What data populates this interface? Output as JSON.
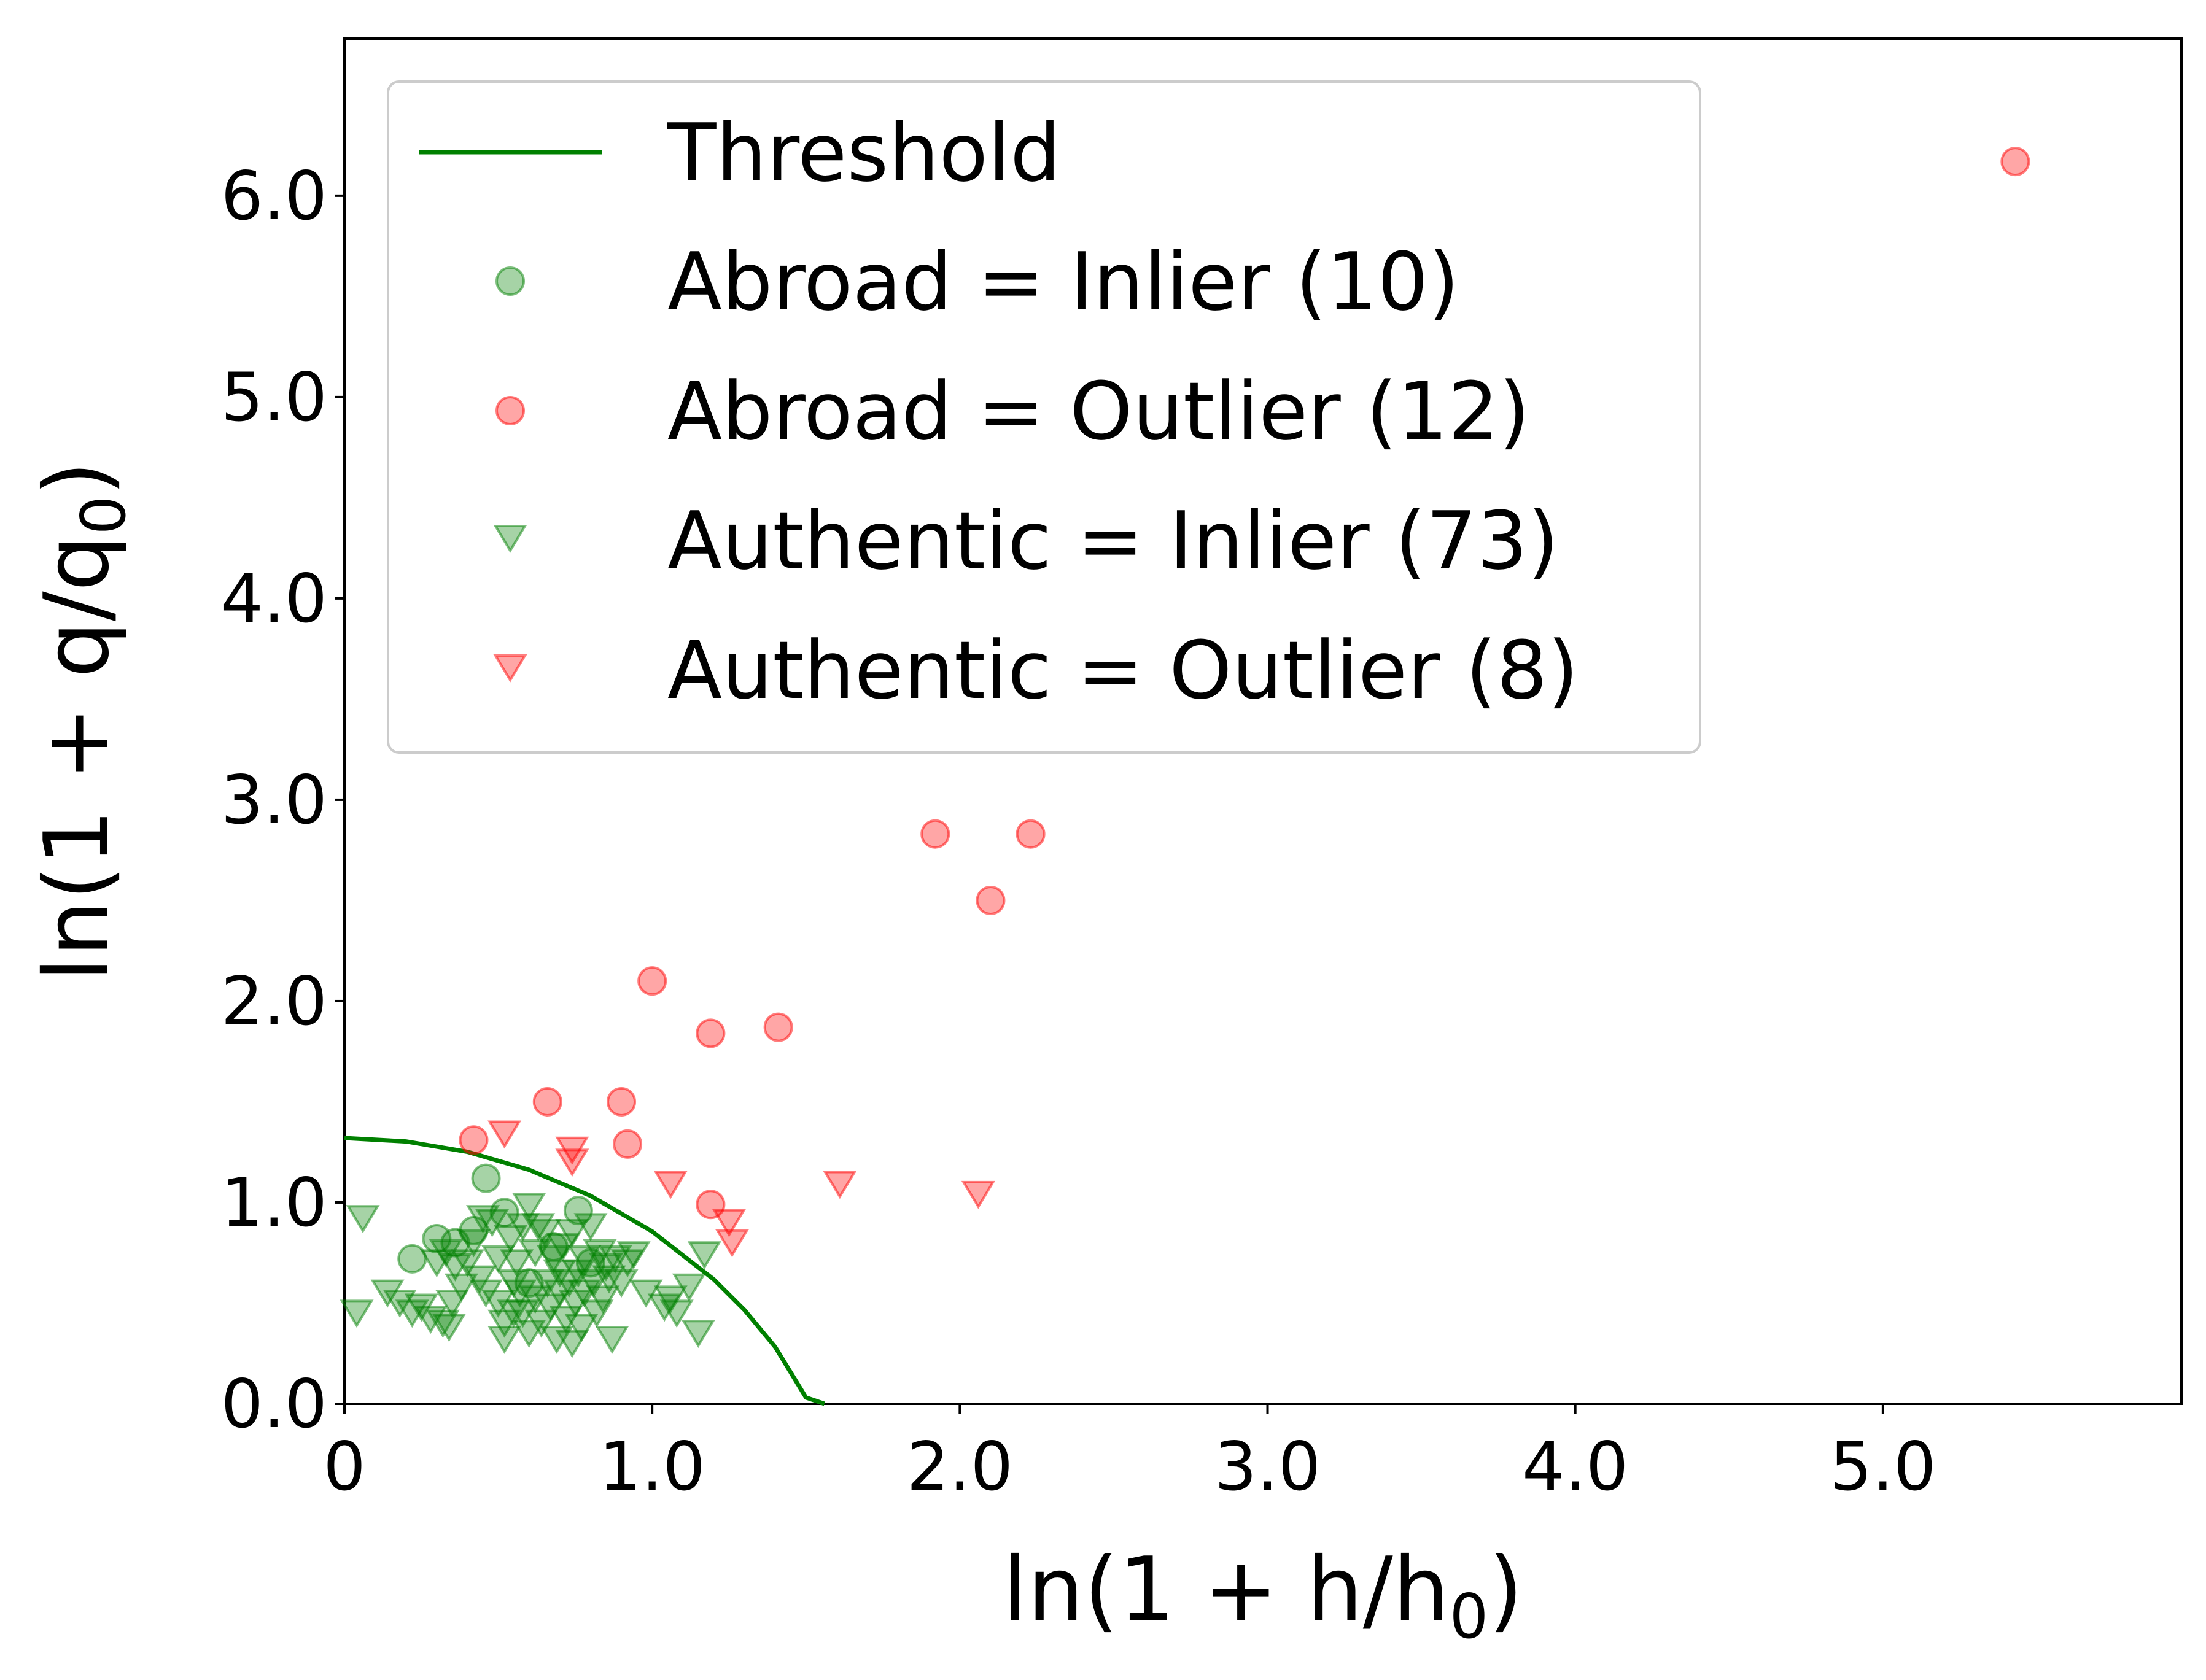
{
  "chart_data": {
    "type": "scatter",
    "xlabel": "ln(1 + h/h",
    "xlabel_sub": "0",
    "xlabel_end": ")",
    "ylabel": "ln(1 + q/q",
    "ylabel_sub": "0",
    "ylabel_end": ")",
    "xlim": [
      0,
      5.97
    ],
    "ylim": [
      0,
      6.78
    ],
    "x_ticks": [
      {
        "value": 0,
        "label": "0"
      },
      {
        "value": 1,
        "label": "1.0"
      },
      {
        "value": 2,
        "label": "2.0"
      },
      {
        "value": 3,
        "label": "3.0"
      },
      {
        "value": 4,
        "label": "4.0"
      },
      {
        "value": 5,
        "label": "5.0"
      }
    ],
    "y_ticks": [
      {
        "value": 0,
        "label": "0.0"
      },
      {
        "value": 1,
        "label": "1.0"
      },
      {
        "value": 2,
        "label": "2.0"
      },
      {
        "value": 3,
        "label": "3.0"
      },
      {
        "value": 4,
        "label": "4.0"
      },
      {
        "value": 5,
        "label": "5.0"
      },
      {
        "value": 6,
        "label": "6.0"
      }
    ],
    "legend_placement": "top-left",
    "grid": false,
    "threshold": {
      "name": "Threshold",
      "color": "#008000",
      "points": [
        [
          0,
          1.32
        ],
        [
          0.2,
          1.303
        ],
        [
          0.4,
          1.251
        ],
        [
          0.6,
          1.162
        ],
        [
          0.8,
          1.033
        ],
        [
          1.0,
          0.856
        ],
        [
          1.2,
          0.618
        ],
        [
          1.3,
          0.466
        ],
        [
          1.4,
          0.282
        ],
        [
          1.5,
          0.031
        ],
        [
          1.56,
          0
        ]
      ]
    },
    "series": [
      {
        "name": "Abroad = Inlier (10)",
        "marker": "circle",
        "color": "#008000",
        "points": [
          [
            0.22,
            0.72
          ],
          [
            0.3,
            0.82
          ],
          [
            0.36,
            0.8
          ],
          [
            0.42,
            0.86
          ],
          [
            0.46,
            1.12
          ],
          [
            0.52,
            0.95
          ],
          [
            0.6,
            0.6
          ],
          [
            0.68,
            0.78
          ],
          [
            0.76,
            0.96
          ],
          [
            0.8,
            0.7
          ]
        ]
      },
      {
        "name": "Abroad = Outlier (12)",
        "marker": "circle",
        "color": "#ff0000",
        "points": [
          [
            0.42,
            1.31
          ],
          [
            0.66,
            1.5
          ],
          [
            0.9,
            1.5
          ],
          [
            0.92,
            1.29
          ],
          [
            1.0,
            2.1
          ],
          [
            1.19,
            1.84
          ],
          [
            1.41,
            1.87
          ],
          [
            1.19,
            0.99
          ],
          [
            1.92,
            2.83
          ],
          [
            2.1,
            2.5
          ],
          [
            2.23,
            2.83
          ],
          [
            5.43,
            6.17
          ]
        ]
      },
      {
        "name": "Authentic = Inlier (73)",
        "marker": "triangle-down",
        "color": "#008000",
        "points": [
          [
            0.06,
            0.92
          ],
          [
            0.04,
            0.45
          ],
          [
            0.14,
            0.55
          ],
          [
            0.18,
            0.5
          ],
          [
            0.22,
            0.45
          ],
          [
            0.25,
            0.48
          ],
          [
            0.28,
            0.42
          ],
          [
            0.32,
            0.4
          ],
          [
            0.34,
            0.38
          ],
          [
            0.35,
            0.5
          ],
          [
            0.38,
            0.58
          ],
          [
            0.3,
            0.7
          ],
          [
            0.33,
            0.75
          ],
          [
            0.36,
            0.68
          ],
          [
            0.4,
            0.7
          ],
          [
            0.42,
            0.8
          ],
          [
            0.44,
            0.62
          ],
          [
            0.45,
            0.92
          ],
          [
            0.48,
            0.9
          ],
          [
            0.5,
            0.72
          ],
          [
            0.5,
            0.5
          ],
          [
            0.52,
            0.4
          ],
          [
            0.52,
            0.32
          ],
          [
            0.54,
            0.82
          ],
          [
            0.55,
            0.6
          ],
          [
            0.56,
            0.7
          ],
          [
            0.57,
            0.55
          ],
          [
            0.58,
            0.88
          ],
          [
            0.58,
            0.45
          ],
          [
            0.6,
            0.98
          ],
          [
            0.6,
            0.35
          ],
          [
            0.62,
            0.52
          ],
          [
            0.62,
            0.75
          ],
          [
            0.64,
            0.4
          ],
          [
            0.65,
            0.85
          ],
          [
            0.66,
            0.6
          ],
          [
            0.67,
            0.48
          ],
          [
            0.68,
            0.72
          ],
          [
            0.69,
            0.32
          ],
          [
            0.7,
            0.55
          ],
          [
            0.71,
            0.78
          ],
          [
            0.72,
            0.42
          ],
          [
            0.73,
            0.6
          ],
          [
            0.74,
            0.3
          ],
          [
            0.74,
            0.85
          ],
          [
            0.75,
            0.5
          ],
          [
            0.76,
            0.65
          ],
          [
            0.77,
            0.38
          ],
          [
            0.78,
            0.72
          ],
          [
            0.78,
            0.55
          ],
          [
            0.8,
            0.88
          ],
          [
            0.81,
            0.6
          ],
          [
            0.82,
            0.45
          ],
          [
            0.83,
            0.75
          ],
          [
            0.84,
            0.52
          ],
          [
            0.85,
            0.68
          ],
          [
            0.86,
            0.62
          ],
          [
            0.87,
            0.32
          ],
          [
            0.88,
            0.72
          ],
          [
            0.9,
            0.6
          ],
          [
            0.92,
            0.7
          ],
          [
            0.94,
            0.74
          ],
          [
            0.98,
            0.55
          ],
          [
            1.04,
            0.48
          ],
          [
            1.06,
            0.52
          ],
          [
            1.08,
            0.45
          ],
          [
            1.12,
            0.58
          ],
          [
            1.15,
            0.35
          ],
          [
            1.17,
            0.74
          ],
          [
            0.46,
            0.55
          ],
          [
            0.7,
            0.65
          ],
          [
            0.63,
            0.88
          ],
          [
            0.55,
            0.45
          ]
        ]
      },
      {
        "name": "Authentic = Outlier (8)",
        "marker": "triangle-down",
        "color": "#ff0000",
        "points": [
          [
            0.52,
            1.34
          ],
          [
            0.74,
            1.26
          ],
          [
            0.74,
            1.2
          ],
          [
            1.06,
            1.09
          ],
          [
            1.25,
            0.9
          ],
          [
            1.26,
            0.8
          ],
          [
            1.61,
            1.09
          ],
          [
            2.06,
            1.04
          ]
        ]
      }
    ]
  }
}
